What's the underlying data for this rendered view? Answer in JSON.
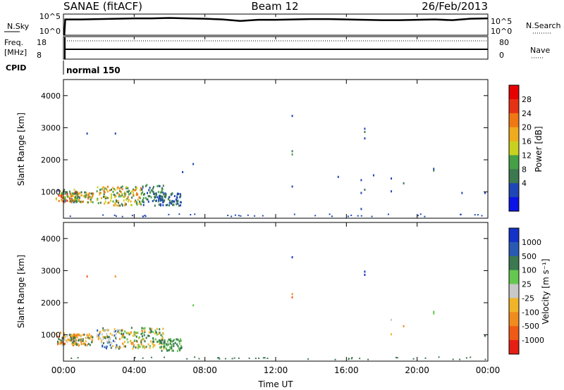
{
  "header": {
    "station": "SANAE (fitACF)",
    "beam": "Beam 12",
    "date": "26/Feb/2013"
  },
  "noise_panel": {
    "left_label": "N.Sky",
    "left_ticks": [
      "10^5",
      "10^0"
    ],
    "right_ticks": [
      "10^5",
      "10^0"
    ],
    "right_label": "N.Search"
  },
  "freq_panel": {
    "left_label_1": "Freq.",
    "left_label_2": "[MHz]",
    "left_ticks": [
      "18",
      "8"
    ],
    "right_ticks": [
      "80",
      "0"
    ],
    "right_label": "Nave"
  },
  "cpid": {
    "label": "CPID",
    "value": "normal 150"
  },
  "power_panel": {
    "ylabel": "Slant Range [km]",
    "yticks": [
      "1000",
      "2000",
      "3000",
      "4000"
    ],
    "colorbar_label": "Power [dB]",
    "colorbar_ticks": [
      "4",
      "8",
      "12",
      "16",
      "20",
      "24",
      "28"
    ],
    "colors": [
      "#0a14e6",
      "#1e46b4",
      "#3c7850",
      "#46a046",
      "#c8d21e",
      "#f0aa1e",
      "#f07814",
      "#e63214",
      "#e60000"
    ]
  },
  "velocity_panel": {
    "ylabel": "Slant Range [km]",
    "yticks": [
      "1000",
      "2000",
      "3000",
      "4000"
    ],
    "colorbar_label": "Velocity [m s⁻¹]",
    "colorbar_ticks": [
      "1000",
      "500",
      "100",
      "25",
      "-25",
      "-100",
      "-500",
      "-1000"
    ],
    "colors": [
      "#1432c8",
      "#285ab4",
      "#3c7850",
      "#64c850",
      "#c8c8c8",
      "#f0b428",
      "#f08c1e",
      "#f05a14",
      "#e61e14"
    ]
  },
  "x_axis": {
    "tick_labels": [
      "00:00",
      "04:00",
      "08:00",
      "12:00",
      "16:00",
      "20:00",
      "00:00"
    ],
    "label": "Time UT"
  },
  "chart_data": {
    "type": "heatmap",
    "title": "SANAE (fitACF) Beam 12 26/Feb/2013",
    "xlabel": "Time UT",
    "ylabel": "Slant Range [km]",
    "xlim_hours": [
      0,
      24
    ],
    "ylim_km": [
      180,
      4500
    ],
    "noise_sky_log10": {
      "t": [
        0.1,
        1,
        2,
        3,
        4,
        5,
        6,
        7,
        8,
        9,
        10,
        11,
        12,
        13,
        14,
        15,
        16,
        17,
        18,
        19,
        20,
        21,
        22,
        23,
        24
      ],
      "v": [
        4.3,
        4.3,
        4.4,
        4.5,
        4.6,
        4.6,
        4.7,
        4.6,
        4.5,
        4.3,
        3.9,
        4.2,
        4.2,
        4.3,
        4.4,
        4.4,
        4.3,
        4.2,
        4.1,
        4.1,
        4.2,
        4.3,
        4.1,
        4.5,
        4.6
      ]
    },
    "frequency_mhz": 11,
    "nave": 80,
    "power_db": [
      {
        "t": 0.2,
        "r_km": [
          700,
          1100
        ],
        "level": "mixed",
        "values": [
          4,
          8,
          12,
          16,
          20,
          24,
          28
        ]
      },
      {
        "t": 1.0,
        "r_km": [
          700,
          1050
        ],
        "values": [
          8,
          12,
          20,
          24
        ]
      },
      {
        "t": 2.5,
        "r_km": [
          600,
          1200
        ],
        "values": [
          8,
          12,
          16,
          20,
          24
        ]
      },
      {
        "t": 3.8,
        "r_km": [
          600,
          1250
        ],
        "values": [
          8,
          12,
          16,
          20,
          24
        ]
      },
      {
        "t": 5.0,
        "r_km": [
          600,
          1250
        ],
        "values": [
          4,
          8,
          12
        ]
      },
      {
        "t": 6.0,
        "r_km": [
          600,
          1000
        ],
        "values": [
          4,
          8
        ]
      },
      {
        "t": 1.3,
        "r_km": [
          2850
        ],
        "values": [
          4
        ]
      },
      {
        "t": 2.9,
        "r_km": [
          2850
        ],
        "values": [
          4
        ]
      },
      {
        "t": 7.3,
        "r_km": [
          1900
        ],
        "values": [
          4,
          8
        ]
      },
      {
        "t": 6.7,
        "r_km": [
          1650
        ],
        "values": [
          4
        ]
      },
      {
        "t": 12.9,
        "r_km": [
          3400,
          2300,
          2200,
          1200
        ],
        "values": [
          4,
          8,
          12
        ]
      },
      {
        "t": 15.5,
        "r_km": [
          1500
        ],
        "values": [
          4
        ]
      },
      {
        "t": 16.8,
        "r_km": [
          1400,
          1000,
          500
        ],
        "values": [
          4
        ]
      },
      {
        "t": 17.0,
        "r_km": [
          3000,
          2900,
          2700,
          1100
        ],
        "values": [
          4,
          8
        ]
      },
      {
        "t": 17.5,
        "r_km": [
          1550
        ],
        "values": [
          4
        ]
      },
      {
        "t": 18.5,
        "r_km": [
          1450,
          1050
        ],
        "values": [
          4
        ]
      },
      {
        "t": 19.2,
        "r_km": [
          1300
        ],
        "values": [
          8
        ]
      },
      {
        "t": 20.9,
        "r_km": [
          1750,
          1700
        ],
        "values": [
          4,
          8
        ]
      },
      {
        "t": 22.5,
        "r_km": [
          1000
        ],
        "values": [
          4
        ]
      },
      {
        "t": 23.8,
        "r_km": [
          1000
        ],
        "values": [
          4
        ]
      }
    ],
    "velocity_ms": [
      {
        "t": 0.2,
        "r_km": [
          700,
          1100
        ],
        "values": [
          -25,
          -100,
          -500,
          -1000,
          100
        ]
      },
      {
        "t": 1.0,
        "r_km": [
          700,
          1050
        ],
        "values": [
          -100,
          -500,
          100
        ]
      },
      {
        "t": 2.5,
        "r_km": [
          600,
          1250
        ],
        "values": [
          100,
          500,
          -25,
          -100
        ]
      },
      {
        "t": 3.8,
        "r_km": [
          600,
          1250
        ],
        "values": [
          -100,
          -500,
          100,
          25
        ]
      },
      {
        "t": 5.0,
        "r_km": [
          600,
          1250
        ],
        "values": [
          100,
          25,
          -100
        ]
      },
      {
        "t": 6.0,
        "r_km": [
          500,
          900
        ],
        "values": [
          25,
          100
        ]
      },
      {
        "t": 1.3,
        "r_km": [
          2850
        ],
        "values": [
          -1000
        ]
      },
      {
        "t": 2.9,
        "r_km": [
          2850
        ],
        "values": [
          -500
        ]
      },
      {
        "t": 7.3,
        "r_km": [
          1950
        ],
        "values": [
          25
        ]
      },
      {
        "t": 12.9,
        "r_km": [
          3450,
          2300,
          2200
        ],
        "values": [
          1000,
          -500,
          -1000
        ]
      },
      {
        "t": 17.0,
        "r_km": [
          3000,
          2900
        ],
        "values": [
          1000
        ]
      },
      {
        "t": 18.5,
        "r_km": [
          1500,
          1050
        ],
        "values": [
          -25,
          -100
        ]
      },
      {
        "t": 19.2,
        "r_km": [
          1300
        ],
        "values": [
          -500
        ]
      },
      {
        "t": 20.9,
        "r_km": [
          1750,
          1700
        ],
        "values": [
          25
        ]
      },
      {
        "t": 23.8,
        "r_km": [
          1000
        ],
        "values": [
          100
        ]
      }
    ]
  }
}
